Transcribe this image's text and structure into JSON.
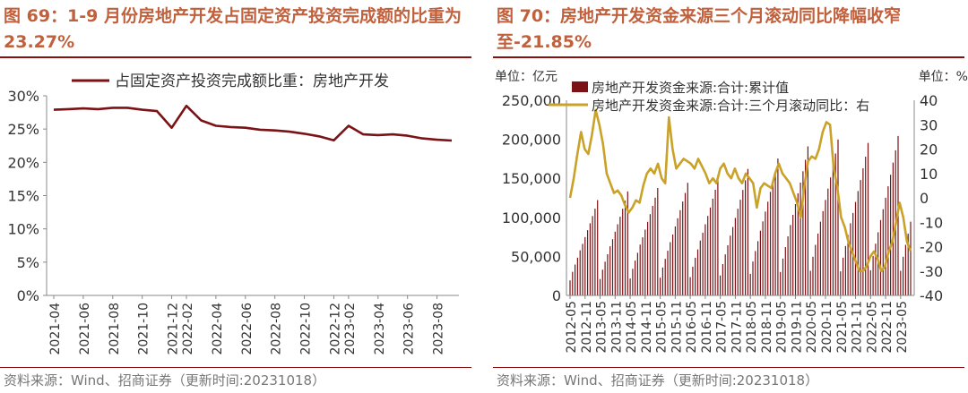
{
  "left": {
    "title": "图 69：1-9 月份房地产开发占固定资产投资完成额的比重为 23.27%",
    "source": "资料来源：Wind、招商证券（更新时间:20231018）"
  },
  "right": {
    "title": "图 70：房地产开发资金来源三个月滚动同比降幅收窄至-21.85%",
    "source": "资料来源：Wind、招商证券（更新时间:20231018）",
    "unit_left": "单位：亿元",
    "unit_right": "单位：%"
  },
  "colors": {
    "dark_red": "#7b1215",
    "gold": "#c9a227",
    "title": "#c0603c",
    "rule": "#8a1010"
  },
  "chart_data": [
    {
      "type": "line",
      "series": [
        {
          "name": "占固定资产投资完成额比重：房地产开发",
          "x": [
            "2021-04",
            "2021-05",
            "2021-06",
            "2021-07",
            "2021-08",
            "2021-09",
            "2021-10",
            "2021-11",
            "2021-12",
            "2022-02",
            "2022-03",
            "2022-04",
            "2022-05",
            "2022-06",
            "2022-07",
            "2022-08",
            "2022-09",
            "2022-10",
            "2022-11",
            "2022-12",
            "2023-02",
            "2023-03",
            "2023-04",
            "2023-05",
            "2023-06",
            "2023-07",
            "2023-08",
            "2023-09"
          ],
          "values": [
            27.9,
            28.0,
            28.1,
            28.0,
            28.2,
            28.2,
            27.9,
            27.7,
            25.2,
            28.5,
            26.3,
            25.5,
            25.3,
            25.2,
            24.9,
            24.8,
            24.6,
            24.3,
            23.9,
            23.3,
            25.5,
            24.2,
            24.1,
            24.2,
            24.0,
            23.6,
            23.4,
            23.27
          ]
        }
      ],
      "x_ticks": [
        "2021-04",
        "2021-06",
        "2021-08",
        "2021-10",
        "2021-12",
        "2022-02",
        "2022-04",
        "2022-06",
        "2022-08",
        "2022-10",
        "2022-12",
        "2023-02",
        "2023-04",
        "2023-06",
        "2023-08"
      ],
      "y_ticks": [
        "0%",
        "5%",
        "10%",
        "15%",
        "20%",
        "25%",
        "30%"
      ],
      "ylim": [
        0,
        30
      ],
      "legend": "top"
    },
    {
      "type": "bar+line",
      "series": [
        {
          "name": "房地产开发资金来源:合计:累计值",
          "kind": "bar",
          "axis": "left",
          "annual_profile": [
            35000,
            55000,
            72000,
            88000,
            105000,
            120000,
            136000,
            152000,
            168000,
            185000,
            202000,
            222000
          ],
          "year_scale": [
            0.55,
            0.6,
            0.62,
            0.65,
            0.67,
            0.73,
            0.79,
            0.86,
            0.9,
            0.88,
            0.92,
            0.9
          ]
        },
        {
          "name": "房地产开发资金来源:合计:三个月滚动同比：右",
          "kind": "line",
          "axis": "right",
          "values": [
            0,
            8,
            18,
            27,
            20,
            18,
            26,
            36,
            30,
            22,
            10,
            6,
            2,
            3,
            1,
            -3,
            -6,
            -4,
            -1,
            -2,
            5,
            10,
            12,
            10,
            14,
            8,
            6,
            33,
            20,
            12,
            14,
            16,
            15,
            14,
            12,
            16,
            13,
            10,
            6,
            8,
            6,
            12,
            14,
            10,
            8,
            12,
            8,
            6,
            10,
            8,
            6,
            -4,
            4,
            6,
            5,
            4,
            10,
            14,
            10,
            8,
            6,
            2,
            -2,
            -8,
            5,
            15,
            17,
            16,
            20,
            27,
            31,
            30,
            12,
            4,
            -8,
            -12,
            -18,
            -22,
            -26,
            -30,
            -30,
            -28,
            -24,
            -22,
            -25,
            -30,
            -28,
            -22,
            -18,
            -10,
            -2,
            -8,
            -18,
            -21.85
          ]
        }
      ],
      "x_ticks": [
        "2012-05",
        "2012-11",
        "2013-05",
        "2013-11",
        "2014-05",
        "2014-11",
        "2015-05",
        "2015-11",
        "2016-05",
        "2016-11",
        "2017-05",
        "2017-11",
        "2018-05",
        "2018-11",
        "2019-05",
        "2019-11",
        "2020-05",
        "2020-11",
        "2021-05",
        "2021-11",
        "2022-05",
        "2022-11",
        "2023-05"
      ],
      "y_left_ticks": [
        "0",
        "50,000",
        "100,000",
        "150,000",
        "200,000",
        "250,000"
      ],
      "y_right_ticks": [
        "40",
        "30",
        "20",
        "10",
        "0",
        "-10",
        "-20",
        "-30",
        "-40"
      ],
      "ylim_left": [
        0,
        250000
      ],
      "ylim_right": [
        -40,
        40
      ],
      "legend": "top-left"
    }
  ]
}
